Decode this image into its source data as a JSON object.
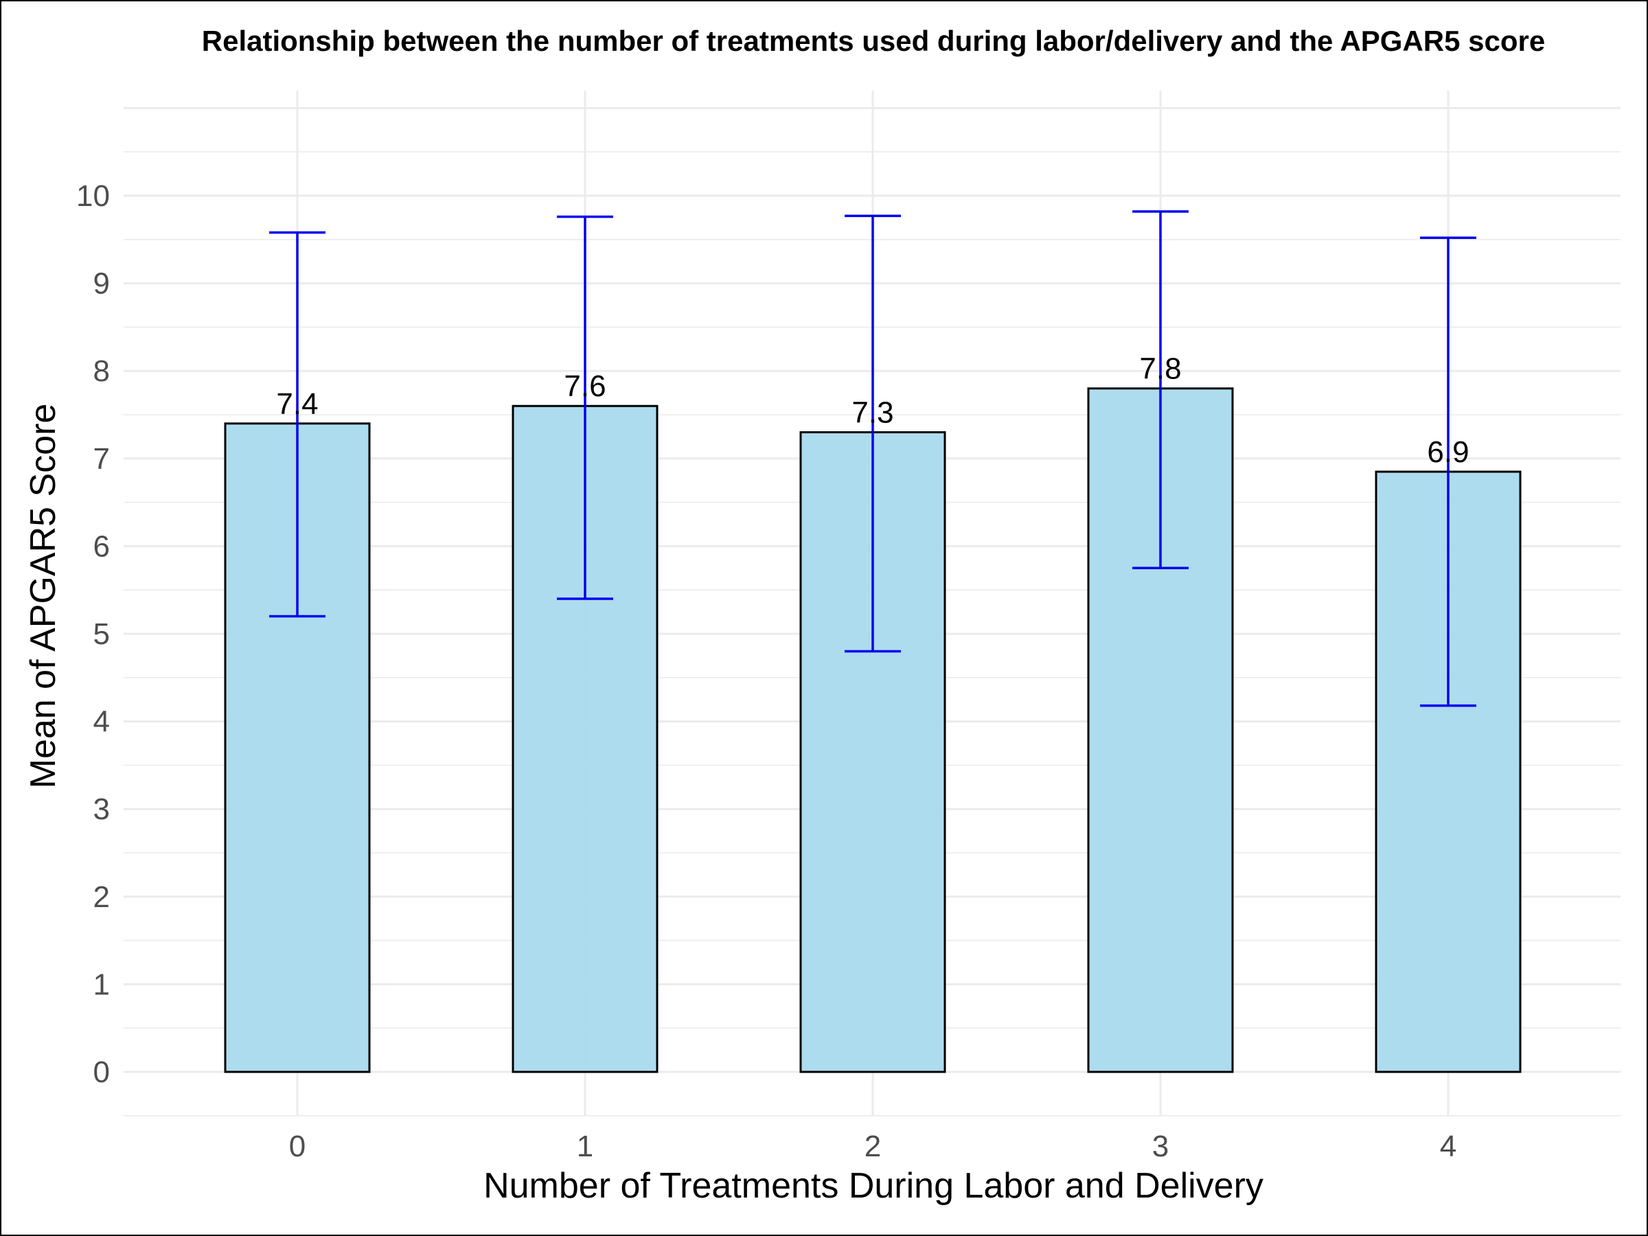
{
  "chart_data": {
    "type": "bar",
    "title": "Relationship between the number of treatments used during labor/delivery and the APGAR5 score",
    "xlabel": "Number of Treatments During Labor and Delivery",
    "ylabel": "Mean of APGAR5 Score",
    "categories": [
      "0",
      "1",
      "2",
      "3",
      "4"
    ],
    "values": [
      7.4,
      7.6,
      7.3,
      7.8,
      6.85
    ],
    "value_labels": [
      "7.4",
      "7.6",
      "7.3",
      "7.8",
      "6.9"
    ],
    "error_low": [
      5.2,
      5.4,
      4.8,
      5.75,
      4.18
    ],
    "error_high": [
      9.58,
      9.76,
      9.77,
      9.82,
      9.52
    ],
    "ylim": [
      -0.5,
      11.2
    ],
    "yticks": [
      "0",
      "1",
      "2",
      "3",
      "4",
      "5",
      "6",
      "7",
      "8",
      "9",
      "10"
    ],
    "grid": true,
    "legend": "none",
    "colors": {
      "bar_fill": "#a6d9ee",
      "bar_stroke": "#000000",
      "error_bar": "#0000ee",
      "grid": "#ebebeb"
    }
  }
}
